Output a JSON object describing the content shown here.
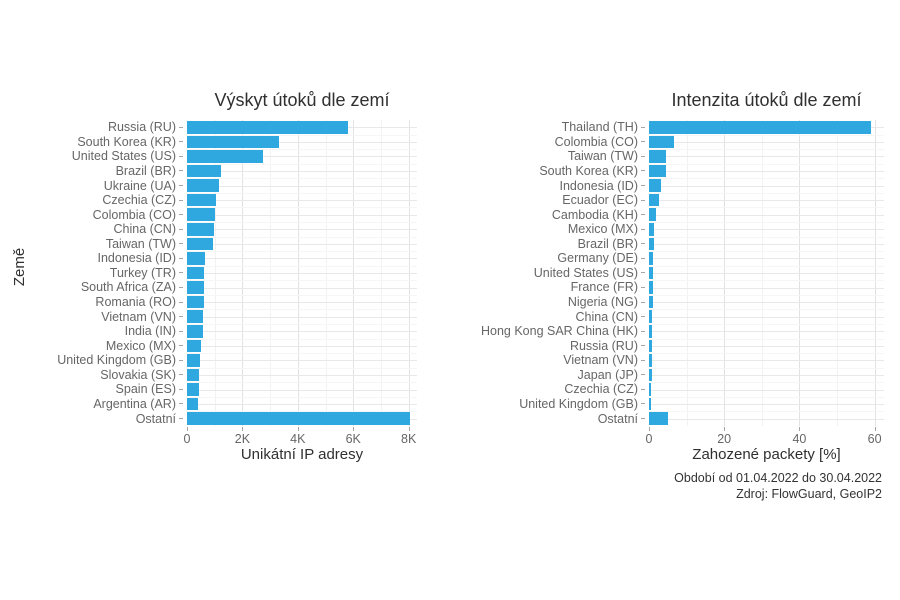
{
  "page": {
    "background": "#ffffff",
    "text_color": "#303030",
    "muted_text_color": "#666666"
  },
  "chart_data": [
    {
      "type": "bar",
      "orientation": "horizontal",
      "title": "Výskyt útoků dle zemí",
      "xlabel": "Unikátní IP adresy",
      "ylabel": "Země",
      "bar_color": "#2FA8DF",
      "grid": true,
      "legend": false,
      "xlim": [
        0,
        8300
      ],
      "ticks": [
        {
          "value": 0,
          "label": "0"
        },
        {
          "value": 2000,
          "label": "2K"
        },
        {
          "value": 4000,
          "label": "4K"
        },
        {
          "value": 6000,
          "label": "6K"
        },
        {
          "value": 8000,
          "label": "8K"
        }
      ],
      "minor_ticks": [
        1000,
        3000,
        5000,
        7000
      ],
      "categories": [
        "Russia (RU)",
        "South Korea (KR)",
        "United States (US)",
        "Brazil (BR)",
        "Ukraine (UA)",
        "Czechia (CZ)",
        "Colombia (CO)",
        "China (CN)",
        "Taiwan (TW)",
        "Indonesia (ID)",
        "Turkey (TR)",
        "South Africa (ZA)",
        "Romania (RO)",
        "Vietnam (VN)",
        "India (IN)",
        "Mexico (MX)",
        "United Kingdom (GB)",
        "Slovakia (SK)",
        "Spain (ES)",
        "Argentina (AR)",
        "Ostatní"
      ],
      "values": [
        5800,
        3320,
        2730,
        1210,
        1140,
        1050,
        1000,
        960,
        940,
        660,
        630,
        620,
        600,
        590,
        580,
        510,
        460,
        450,
        445,
        400,
        8040
      ]
    },
    {
      "type": "bar",
      "orientation": "horizontal",
      "title": "Intenzita útoků dle zemí",
      "xlabel": "Zahozené packety [%]",
      "ylabel": "",
      "bar_color": "#2FA8DF",
      "grid": true,
      "legend": false,
      "xlim": [
        0,
        62.5
      ],
      "ticks": [
        {
          "value": 0,
          "label": "0"
        },
        {
          "value": 20,
          "label": "20"
        },
        {
          "value": 40,
          "label": "40"
        },
        {
          "value": 60,
          "label": "60"
        }
      ],
      "minor_ticks": [
        10,
        30,
        50
      ],
      "categories": [
        "Thailand (TH)",
        "Colombia (CO)",
        "Taiwan (TW)",
        "South Korea (KR)",
        "Indonesia (ID)",
        "Ecuador (EC)",
        "Cambodia (KH)",
        "Mexico (MX)",
        "Brazil (BR)",
        "Germany (DE)",
        "United States (US)",
        "France (FR)",
        "Nigeria (NG)",
        "China (CN)",
        "Hong Kong SAR China (HK)",
        "Russia (RU)",
        "Vietnam (VN)",
        "Japan (JP)",
        "Czechia (CZ)",
        "United Kingdom (GB)",
        "Ostatní"
      ],
      "values": [
        59,
        6.7,
        4.6,
        4.5,
        3.3,
        2.6,
        1.8,
        1.3,
        1.2,
        1.1,
        1.0,
        1.0,
        1.0,
        0.9,
        0.9,
        0.85,
        0.7,
        0.7,
        0.55,
        0.45,
        5.0
      ]
    }
  ],
  "caption": {
    "line1": "Období od 01.04.2022 do 30.04.2022",
    "line2": "Zdroj: FlowGuard, GeoIP2"
  }
}
